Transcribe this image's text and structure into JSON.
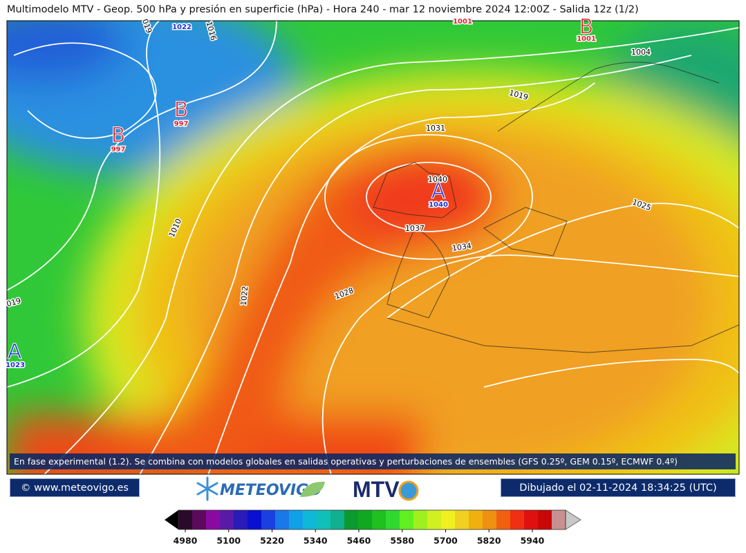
{
  "header": {
    "title": "Multimodelo MTV - Geop. 500 hPa y presión en superficie (hPa) - Hora 240 - mar 12 noviembre 2024 12:00Z - Salida 12z (1/2)"
  },
  "map": {
    "pressure_centers": [
      {
        "letter": "B",
        "value": "1001"
      },
      {
        "letter": "B",
        "value": "997"
      },
      {
        "letter": "B",
        "value": "997"
      },
      {
        "letter": "A",
        "value": "1040"
      },
      {
        "letter": "A",
        "value": "1023"
      },
      {
        "value": "1022"
      },
      {
        "value": "1001"
      }
    ],
    "isobar_labels": [
      "019",
      "1016",
      "1004",
      "1019",
      "1031",
      "1040",
      "1037",
      "1034",
      "1028",
      "1022",
      "1010",
      "1025",
      "019"
    ]
  },
  "note": "En fase experimental (1.2). Se combina con modelos globales en salidas operativas y perturbaciones de ensembles (GFS 0.25º, GEM 0.15º, ECMWF 0.4º)",
  "footer": {
    "website": "© www.meteovigo.es",
    "logo_left": "METEOVIGO",
    "logo_right": "MTV",
    "drawn": "Dibujado el 02-11-2024 18:34:25 (UTC)"
  },
  "colorbar": {
    "colors": [
      "#2a0a2a",
      "#5c0a5c",
      "#8a0aa0",
      "#5a1aa8",
      "#2a1ab8",
      "#0a10d0",
      "#1a40e0",
      "#1a78e8",
      "#10a0e8",
      "#10b8d8",
      "#10c0b8",
      "#10b090",
      "#0a9a30",
      "#10a820",
      "#20c020",
      "#30d830",
      "#60f020",
      "#a0f020",
      "#d0f020",
      "#f0f020",
      "#f0d020",
      "#f0b010",
      "#f09010",
      "#f06010",
      "#f03010",
      "#e01010",
      "#c80808",
      "#c89090"
    ],
    "ticks": [
      4980,
      5100,
      5220,
      5340,
      5460,
      5580,
      5700,
      5820,
      5940
    ]
  }
}
